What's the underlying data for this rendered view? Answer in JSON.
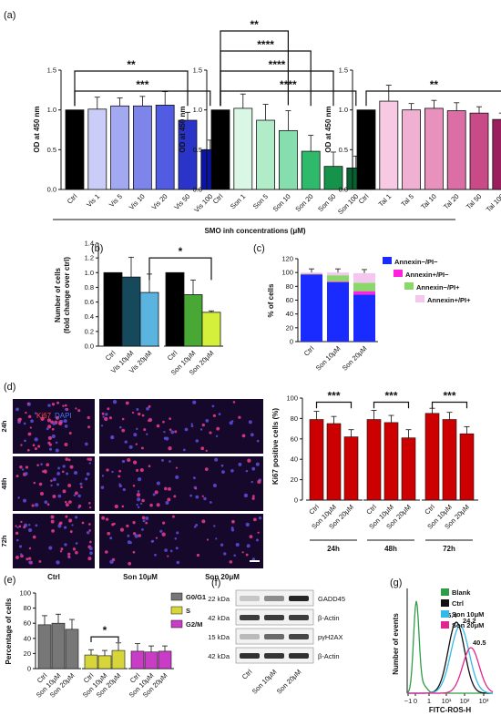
{
  "figure": {
    "panel_labels": [
      "(a)",
      "(b)",
      "(c)",
      "(d)",
      "(e)",
      "(f)",
      "(g)"
    ],
    "a_footer": "SMO inh concentrations (μM)"
  },
  "colors": {
    "vis": [
      "#000000",
      "#c9cdf7",
      "#a3a9f1",
      "#7d85ea",
      "#525ce2",
      "#2a34c9",
      "#0b14a6"
    ],
    "son": [
      "#000000",
      "#d9f7e4",
      "#b1ecc9",
      "#86ddad",
      "#2fb96b",
      "#15934b",
      "#08622f"
    ],
    "tal": [
      "#000000",
      "#f7c9e3",
      "#f0b0d2",
      "#e891bc",
      "#db6ea4",
      "#c84a86",
      "#9b1f5e"
    ],
    "annexin": [
      "#1a2bff",
      "#ff22dd",
      "#8ad86a",
      "#f3c7ee"
    ],
    "ki67_bar": "#cc0000",
    "hist": [
      "#2e9d45",
      "#111111",
      "#33b9e8",
      "#e3258e"
    ]
  },
  "chart_data": [
    {
      "id": "a1",
      "type": "bar",
      "categories": [
        "Ctrl",
        "Vis 1",
        "Vis 5",
        "Vis 10",
        "Vis 20",
        "Vis 50",
        "Vis 100"
      ],
      "values": [
        1.0,
        1.01,
        1.05,
        1.05,
        1.06,
        0.87,
        0.5
      ],
      "errors": [
        0,
        0.15,
        0.1,
        0.12,
        0.17,
        0.1,
        0.12
      ],
      "ylabel": "OD at 450 nm",
      "ylim": [
        0,
        1.5
      ],
      "yticks": [
        "0.0",
        "0.5",
        "1.0",
        "1.5"
      ],
      "sig": [
        {
          "from": 0,
          "to": 5,
          "label": "**"
        },
        {
          "from": 0,
          "to": 6,
          "label": "***"
        }
      ]
    },
    {
      "id": "a2",
      "type": "bar",
      "categories": [
        "Ctrl",
        "Son 1",
        "Son 5",
        "Son 10",
        "Son 20",
        "Son 50",
        "Son 100"
      ],
      "values": [
        1.0,
        1.02,
        0.87,
        0.74,
        0.48,
        0.29,
        0.27
      ],
      "errors": [
        0,
        0.18,
        0.2,
        0.25,
        0.2,
        0.18,
        0.15
      ],
      "ylabel": "OD at 450 nm",
      "ylim": [
        0,
        1.5
      ],
      "yticks": [
        "0.0",
        "0.5",
        "1.0",
        "1.5"
      ],
      "sig": [
        {
          "from": 0,
          "to": 3,
          "label": "**"
        },
        {
          "from": 0,
          "to": 4,
          "label": "****"
        },
        {
          "from": 0,
          "to": 5,
          "label": "****"
        },
        {
          "from": 0,
          "to": 6,
          "label": "****"
        }
      ]
    },
    {
      "id": "a3",
      "type": "bar",
      "categories": [
        "Ctrl",
        "Tal 1",
        "Tal 5",
        "Tal 10",
        "Tal 20",
        "Tal 50",
        "Tal 100"
      ],
      "values": [
        1.0,
        1.11,
        1.0,
        1.02,
        0.99,
        0.96,
        0.88
      ],
      "errors": [
        0,
        0.2,
        0.08,
        0.1,
        0.1,
        0.08,
        0.08
      ],
      "ylabel": "OD at 450 nm",
      "ylim": [
        0,
        1.5
      ],
      "yticks": [
        "0.0",
        "0.5",
        "1.0",
        "1.5"
      ],
      "sig": [
        {
          "from": 0,
          "to": 6,
          "label": "**"
        }
      ]
    },
    {
      "id": "b",
      "type": "bar",
      "categories": [
        "Ctrl",
        "Vis 10μM",
        "Vis 20μM",
        "Ctrl",
        "Son 10μM",
        "Son 20μM"
      ],
      "values": [
        1.0,
        0.94,
        0.73,
        1.0,
        0.7,
        0.46
      ],
      "errors": [
        0,
        0.27,
        0.25,
        0,
        0.2,
        0.02
      ],
      "bar_colors": [
        "#000000",
        "#16495c",
        "#5bb3df",
        "#000000",
        "#48a735",
        "#d4f03a"
      ],
      "ylabel": "Number of cells\n(fold change over ctrl)",
      "ylim": [
        0,
        1.4
      ],
      "yticks": [
        "0.0",
        "0.2",
        "0.4",
        "0.6",
        "0.8",
        "1.0",
        "1.2",
        "1.4"
      ],
      "sig": [
        {
          "from": 2,
          "to": 5,
          "label": "*"
        }
      ]
    },
    {
      "id": "c",
      "type": "bar",
      "categories": [
        "Ctrl",
        "Son 10μM",
        "Son 20μM"
      ],
      "series": [
        {
          "name": "Annexin−/PI−",
          "values": [
            97,
            86,
            68
          ]
        },
        {
          "name": "Annexin+/PI−",
          "values": [
            0.5,
            1,
            5
          ]
        },
        {
          "name": "Annexin−/PI+",
          "values": [
            1,
            9,
            12
          ]
        },
        {
          "name": "Annexin+/PI+",
          "values": [
            1.5,
            4,
            14
          ]
        }
      ],
      "ylabel": "% of cells",
      "ylim": [
        0,
        120
      ],
      "yticks": [
        "0",
        "20",
        "40",
        "60",
        "80",
        "100",
        "120"
      ]
    },
    {
      "id": "d",
      "type": "bar",
      "groups": [
        "24h",
        "48h",
        "72h"
      ],
      "categories": [
        "Ctrl",
        "Son 10μM",
        "Son 20μM"
      ],
      "values": [
        [
          79,
          75,
          62
        ],
        [
          79,
          76,
          61
        ],
        [
          85,
          79,
          65
        ]
      ],
      "errors": [
        [
          8,
          7,
          7
        ],
        [
          9,
          7,
          8
        ],
        [
          5,
          7,
          7
        ]
      ],
      "ylabel": "Ki67 positive cells (%)",
      "ylim": [
        0,
        100
      ],
      "yticks": [
        "0",
        "20",
        "40",
        "60",
        "80",
        "100"
      ],
      "sig": [
        "***",
        "***",
        "***"
      ]
    },
    {
      "id": "e",
      "type": "bar",
      "groups": [
        "G0/G1",
        "S",
        "G2/M"
      ],
      "categories": [
        "Ctrl",
        "Son 10μM",
        "Son 20μM"
      ],
      "values": [
        [
          58,
          60,
          52
        ],
        [
          18,
          17,
          24
        ],
        [
          23,
          22,
          23
        ]
      ],
      "errors": [
        [
          12,
          12,
          13
        ],
        [
          7,
          7,
          10
        ],
        [
          10,
          8,
          7
        ]
      ],
      "bar_colors": [
        "#777777",
        "#d6d63a",
        "#c93cc6"
      ],
      "ylabel": "Percentage of cells",
      "ylim": [
        0,
        100
      ],
      "yticks": [
        "0",
        "20",
        "40",
        "60",
        "80",
        "100"
      ],
      "sig": [
        {
          "group": 1,
          "label": "*"
        }
      ]
    },
    {
      "id": "g",
      "type": "line",
      "series": [
        {
          "name": "Blank"
        },
        {
          "name": "Ctrl"
        },
        {
          "name": "Son 10μM"
        },
        {
          "name": "Son 20μM"
        }
      ],
      "peak_labels": [
        "15.4",
        "24.2",
        "40.5"
      ],
      "xlabel": "FITC-ROS-H",
      "ylabel": "Number of events",
      "xticks": [
        "−1",
        "0",
        "1",
        "10¹",
        "10²",
        "10³"
      ]
    }
  ],
  "micrograph": {
    "rows": [
      "24h",
      "48h",
      "72h"
    ],
    "cols": [
      "Ctrl",
      "Son 10μM",
      "Son 20μM"
    ],
    "stain_ki67": "Ki67",
    "stain_dapi": "DAPI"
  },
  "blot": {
    "rows": [
      {
        "kda": "22 kDa",
        "label": "GADD45"
      },
      {
        "kda": "42 kDa",
        "label": "β-Actin"
      },
      {
        "kda": "15 kDa",
        "label": "pγH2AX"
      },
      {
        "kda": "42 kDa",
        "label": "β-Actin"
      }
    ],
    "lanes": [
      "Ctrl",
      "Son 10μM",
      "Son 20μM"
    ]
  }
}
